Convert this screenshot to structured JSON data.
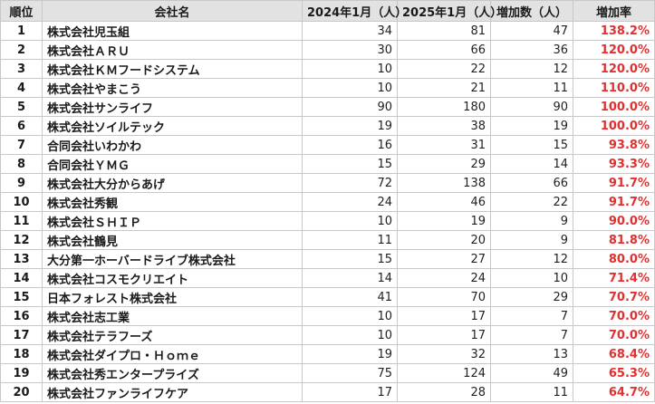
{
  "table": {
    "headers": {
      "rank": "順位",
      "company": "会社名",
      "jan2024": "2024年1月（人）",
      "jan2025": "2025年1月（人）",
      "increase": "増加数（人）",
      "rate": "増加率"
    },
    "rows": [
      {
        "rank": "1",
        "company": "株式会社児玉組",
        "jan2024": "34",
        "jan2025": "81",
        "increase": "47",
        "rate": "138.2%"
      },
      {
        "rank": "2",
        "company": "株式会社ＡＲＵ",
        "jan2024": "30",
        "jan2025": "66",
        "increase": "36",
        "rate": "120.0%"
      },
      {
        "rank": "3",
        "company": "株式会社ＫＭフードシステム",
        "jan2024": "10",
        "jan2025": "22",
        "increase": "12",
        "rate": "120.0%"
      },
      {
        "rank": "4",
        "company": "株式会社やまこう",
        "jan2024": "10",
        "jan2025": "21",
        "increase": "11",
        "rate": "110.0%"
      },
      {
        "rank": "5",
        "company": "株式会社サンライフ",
        "jan2024": "90",
        "jan2025": "180",
        "increase": "90",
        "rate": "100.0%"
      },
      {
        "rank": "6",
        "company": "株式会社ソイルテック",
        "jan2024": "19",
        "jan2025": "38",
        "increase": "19",
        "rate": "100.0%"
      },
      {
        "rank": "7",
        "company": "合同会社いわかわ",
        "jan2024": "16",
        "jan2025": "31",
        "increase": "15",
        "rate": "93.8%"
      },
      {
        "rank": "8",
        "company": "合同会社ＹＭＧ",
        "jan2024": "15",
        "jan2025": "29",
        "increase": "14",
        "rate": "93.3%"
      },
      {
        "rank": "9",
        "company": "株式会社大分からあげ",
        "jan2024": "72",
        "jan2025": "138",
        "increase": "66",
        "rate": "91.7%"
      },
      {
        "rank": "10",
        "company": "株式会社秀観",
        "jan2024": "24",
        "jan2025": "46",
        "increase": "22",
        "rate": "91.7%"
      },
      {
        "rank": "11",
        "company": "株式会社ＳＨＩＰ",
        "jan2024": "10",
        "jan2025": "19",
        "increase": "9",
        "rate": "90.0%"
      },
      {
        "rank": "12",
        "company": "株式会社鶴見",
        "jan2024": "11",
        "jan2025": "20",
        "increase": "9",
        "rate": "81.8%"
      },
      {
        "rank": "13",
        "company": "大分第一ホーバードライブ株式会社",
        "jan2024": "15",
        "jan2025": "27",
        "increase": "12",
        "rate": "80.0%"
      },
      {
        "rank": "14",
        "company": "株式会社コスモクリエイト",
        "jan2024": "14",
        "jan2025": "24",
        "increase": "10",
        "rate": "71.4%"
      },
      {
        "rank": "15",
        "company": "日本フォレスト株式会社",
        "jan2024": "41",
        "jan2025": "70",
        "increase": "29",
        "rate": "70.7%"
      },
      {
        "rank": "16",
        "company": "株式会社志工業",
        "jan2024": "10",
        "jan2025": "17",
        "increase": "7",
        "rate": "70.0%"
      },
      {
        "rank": "17",
        "company": "株式会社テラフーズ",
        "jan2024": "10",
        "jan2025": "17",
        "increase": "7",
        "rate": "70.0%"
      },
      {
        "rank": "18",
        "company": "株式会社ダイプロ・Ｈｏｍｅ",
        "jan2024": "19",
        "jan2025": "32",
        "increase": "13",
        "rate": "68.4%"
      },
      {
        "rank": "19",
        "company": "株式会社秀エンタープライズ",
        "jan2024": "75",
        "jan2025": "124",
        "increase": "49",
        "rate": "65.3%"
      },
      {
        "rank": "20",
        "company": "株式会社ファンライフケア",
        "jan2024": "17",
        "jan2025": "28",
        "increase": "11",
        "rate": "64.7%"
      }
    ]
  },
  "colors": {
    "header_bg": "#e2e2e2",
    "grid": "#c8c8c8",
    "rate_text": "#e03030"
  }
}
